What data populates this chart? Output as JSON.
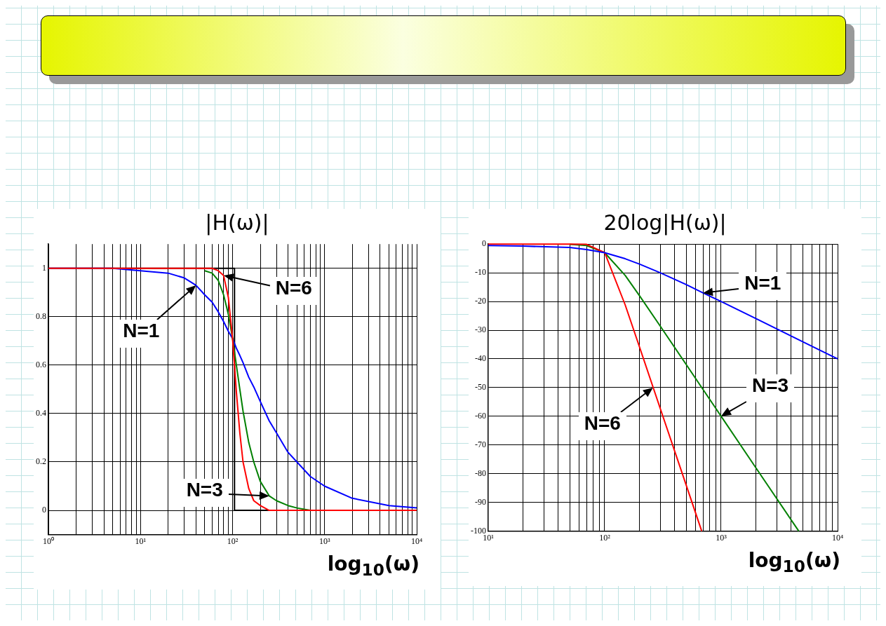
{
  "chart_data": [
    {
      "type": "line",
      "title": "|H(ω)|",
      "xlabel": "log$_{10}$(ω)",
      "log": "x",
      "grid": true,
      "legend": false,
      "marker": "none",
      "xlim": [
        1,
        10000
      ],
      "xticks": [
        {
          "value": 1,
          "label": "10⁰"
        },
        {
          "value": 2,
          "label": null
        },
        {
          "value": 3,
          "label": null
        },
        {
          "value": 4,
          "label": null
        },
        {
          "value": 5,
          "label": null
        },
        {
          "value": 6,
          "label": null
        },
        {
          "value": 7,
          "label": null
        },
        {
          "value": 8,
          "label": null
        },
        {
          "value": 9,
          "label": null
        },
        {
          "value": 10,
          "label": "10¹"
        },
        {
          "value": 20,
          "label": null
        },
        {
          "value": 30,
          "label": null
        },
        {
          "value": 40,
          "label": null
        },
        {
          "value": 50,
          "label": null
        },
        {
          "value": 60,
          "label": null
        },
        {
          "value": 70,
          "label": null
        },
        {
          "value": 80,
          "label": null
        },
        {
          "value": 90,
          "label": null
        },
        {
          "value": 100,
          "label": "10²"
        },
        {
          "value": 200,
          "label": null
        },
        {
          "value": 300,
          "label": null
        },
        {
          "value": 400,
          "label": null
        },
        {
          "value": 500,
          "label": null
        },
        {
          "value": 600,
          "label": null
        },
        {
          "value": 700,
          "label": null
        },
        {
          "value": 800,
          "label": null
        },
        {
          "value": 900,
          "label": null
        },
        {
          "value": 1000,
          "label": "10³"
        },
        {
          "value": 2000,
          "label": null
        },
        {
          "value": 3000,
          "label": null
        },
        {
          "value": 4000,
          "label": null
        },
        {
          "value": 5000,
          "label": null
        },
        {
          "value": 6000,
          "label": null
        },
        {
          "value": 7000,
          "label": null
        },
        {
          "value": 8000,
          "label": null
        },
        {
          "value": 9000,
          "label": null
        },
        {
          "value": 10000,
          "label": "10⁴"
        }
      ],
      "ylim": [
        -0.1,
        1.1
      ],
      "yticks": [
        0,
        0.2,
        0.4,
        0.6,
        0.8,
        1
      ],
      "series": [
        {
          "color": "#ff0000",
          "x": [
            1,
            10,
            50,
            60,
            70,
            80,
            90,
            100,
            110,
            120,
            130,
            150,
            170,
            200,
            250,
            300,
            10000
          ],
          "values": [
            1,
            1,
            1,
            1,
            0.99,
            0.97,
            0.88,
            0.71,
            0.49,
            0.32,
            0.2,
            0.09,
            0.04,
            0.02,
            0,
            0,
            0
          ]
        },
        {
          "color": "#008000",
          "x": [
            50,
            60,
            70,
            80,
            90,
            100,
            110,
            120,
            130,
            150,
            170,
            200,
            250,
            300,
            400,
            500,
            700,
            1000,
            10000
          ],
          "values": [
            0.99,
            0.98,
            0.95,
            0.89,
            0.81,
            0.71,
            0.6,
            0.5,
            0.41,
            0.28,
            0.2,
            0.12,
            0.06,
            0.04,
            0.02,
            0.01,
            0,
            0,
            0
          ]
        },
        {
          "color": "#0000ff",
          "x": [
            1,
            2,
            5,
            10,
            20,
            30,
            40,
            50,
            60,
            70,
            80,
            90,
            100,
            110,
            120,
            130,
            150,
            170,
            200,
            250,
            300,
            400,
            500,
            700,
            1000,
            2000,
            5000,
            10000
          ],
          "values": [
            1,
            1,
            1,
            0.99,
            0.98,
            0.96,
            0.93,
            0.89,
            0.86,
            0.82,
            0.78,
            0.74,
            0.71,
            0.67,
            0.64,
            0.61,
            0.55,
            0.51,
            0.45,
            0.37,
            0.32,
            0.24,
            0.2,
            0.14,
            0.1,
            0.05,
            0.02,
            0.01
          ]
        },
        {
          "color": "#000000",
          "x": [
            1,
            105,
            105,
            10000
          ],
          "values": [
            1,
            1,
            0,
            0
          ]
        }
      ],
      "annotations": [
        {
          "text": "N=1",
          "x": 40,
          "y": 0.93
        },
        {
          "text": "N=6",
          "x": 80,
          "y": 0.97
        },
        {
          "text": "N=3",
          "x": 250,
          "y": 0.06
        }
      ]
    },
    {
      "type": "line",
      "title": "20log|H(ω)|",
      "xlabel": "log$_{10}$(ω)",
      "log": "x",
      "grid": true,
      "legend": false,
      "marker": "none",
      "xlim": [
        10,
        10000
      ],
      "xticks": [
        {
          "value": 10,
          "label": "10¹"
        },
        {
          "value": 20,
          "label": null
        },
        {
          "value": 30,
          "label": null
        },
        {
          "value": 40,
          "label": null
        },
        {
          "value": 50,
          "label": null
        },
        {
          "value": 60,
          "label": null
        },
        {
          "value": 70,
          "label": null
        },
        {
          "value": 80,
          "label": null
        },
        {
          "value": 90,
          "label": null
        },
        {
          "value": 100,
          "label": "10²"
        },
        {
          "value": 200,
          "label": null
        },
        {
          "value": 300,
          "label": null
        },
        {
          "value": 400,
          "label": null
        },
        {
          "value": 500,
          "label": null
        },
        {
          "value": 600,
          "label": null
        },
        {
          "value": 700,
          "label": null
        },
        {
          "value": 800,
          "label": null
        },
        {
          "value": 900,
          "label": null
        },
        {
          "value": 1000,
          "label": "10³"
        },
        {
          "value": 2000,
          "label": null
        },
        {
          "value": 3000,
          "label": null
        },
        {
          "value": 4000,
          "label": null
        },
        {
          "value": 5000,
          "label": null
        },
        {
          "value": 6000,
          "label": null
        },
        {
          "value": 7000,
          "label": null
        },
        {
          "value": 8000,
          "label": null
        },
        {
          "value": 9000,
          "label": null
        },
        {
          "value": 10000,
          "label": "10⁴"
        }
      ],
      "ylim": [
        -100,
        0
      ],
      "yticks": [
        0,
        -10,
        -20,
        -30,
        -40,
        -50,
        -60,
        -70,
        -80,
        -90,
        -100
      ],
      "series": [
        {
          "color": "#0000ff",
          "x": [
            10,
            20,
            50,
            70,
            100,
            150,
            200,
            300,
            500,
            700,
            1000,
            2000,
            5000,
            10000
          ],
          "values": [
            -0.5,
            -0.7,
            -1.2,
            -1.9,
            -3,
            -5.1,
            -7,
            -10,
            -14.1,
            -17,
            -20,
            -26,
            -34,
            -40
          ]
        },
        {
          "color": "#ff0000",
          "x": [
            10,
            50,
            70,
            100,
            150,
            200,
            300,
            500,
            681
          ],
          "values": [
            0,
            0,
            -0.1,
            -3,
            -21.2,
            -36.1,
            -57.3,
            -83.9,
            -100
          ]
        },
        {
          "color": "#008000",
          "x": [
            50,
            70,
            100,
            150,
            200,
            300,
            500,
            700,
            1000,
            2000,
            4640
          ],
          "values": [
            -0.1,
            -0.5,
            -3,
            -10.9,
            -18.1,
            -28.6,
            -41.9,
            -50.7,
            -60,
            -78.1,
            -100
          ]
        }
      ],
      "annotations": [
        {
          "text": "N=1",
          "x": 700,
          "y": -17
        },
        {
          "text": "N=3",
          "x": 1000,
          "y": -60
        },
        {
          "text": "N=6",
          "x": 260,
          "y": -50
        }
      ]
    }
  ]
}
